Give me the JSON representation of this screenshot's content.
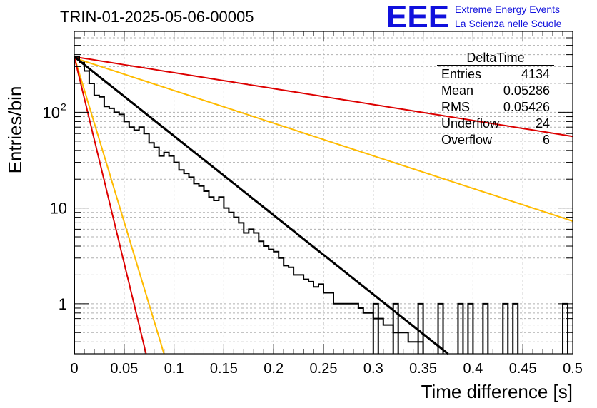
{
  "header": {
    "run_title": "TRIN-01-2025-05-06-00005",
    "logo_text": "EEE",
    "logo_line1": "Extreme Energy Events",
    "logo_line2": "La Scienza nelle Scuole"
  },
  "stats": {
    "title": "DeltaTime",
    "rows": [
      {
        "label": "Entries",
        "value": "4134"
      },
      {
        "label": "Mean",
        "value": "0.05286"
      },
      {
        "label": "RMS",
        "value": "0.05426"
      },
      {
        "label": "Underflow",
        "value": "24"
      },
      {
        "label": "Overflow",
        "value": "6"
      }
    ]
  },
  "colors": {
    "histogram": "#000000",
    "fit_main": "#000000",
    "band_inner": "#dd0000",
    "band_outer": "#ffbb00",
    "grid": "#b0b0b0",
    "logo": "#1010dd"
  },
  "chart_data": {
    "type": "line",
    "xlabel": "Time difference [s]",
    "ylabel": "Entries/bin",
    "xlim": [
      0,
      0.5
    ],
    "ylim": [
      0.3,
      700
    ],
    "y_scale": "log",
    "grid": true,
    "x_ticks": [
      "0",
      "0.05",
      "0.1",
      "0.15",
      "0.2",
      "0.25",
      "0.3",
      "0.35",
      "0.4",
      "0.45",
      "0.5"
    ],
    "y_ticks": [
      {
        "value": 1,
        "label": "1"
      },
      {
        "value": 10,
        "label": "10"
      },
      {
        "value": 100,
        "label": "10",
        "exp": "2"
      }
    ],
    "bin_width": 0.005,
    "histogram_counts": [
      380,
      330,
      270,
      200,
      150,
      145,
      115,
      110,
      100,
      95,
      80,
      70,
      65,
      70,
      60,
      48,
      43,
      35,
      38,
      35,
      30,
      25,
      23,
      21,
      18,
      17,
      15,
      13,
      12,
      13,
      10,
      9,
      8,
      7,
      5.5,
      6,
      5.5,
      4.5,
      4,
      3.7,
      3.5,
      3,
      2.5,
      2.4,
      2,
      2,
      1.8,
      1.7,
      1.5,
      1.6,
      1.3,
      1.3,
      1,
      1,
      1,
      1,
      1,
      0.9,
      0.8,
      0.8,
      0.7,
      0.7,
      0.6,
      0.6,
      0.5,
      0.5,
      0.5,
      0.4,
      0.4,
      0.4
    ],
    "series": [
      {
        "role": "fit",
        "x": [
          0,
          0.375
        ],
        "y": [
          380,
          0.3
        ]
      },
      {
        "role": "band-outer-shallow",
        "x": [
          0,
          0.5
        ],
        "y": [
          370,
          7.3
        ]
      },
      {
        "role": "band-inner-shallow",
        "x": [
          0,
          0.5
        ],
        "y": [
          380,
          56
        ]
      },
      {
        "role": "band-outer-steep",
        "x": [
          0,
          0.09
        ],
        "y": [
          380,
          0.3
        ]
      },
      {
        "role": "band-inner-steep",
        "x": [
          0,
          0.072
        ],
        "y": [
          380,
          0.3
        ]
      }
    ]
  }
}
